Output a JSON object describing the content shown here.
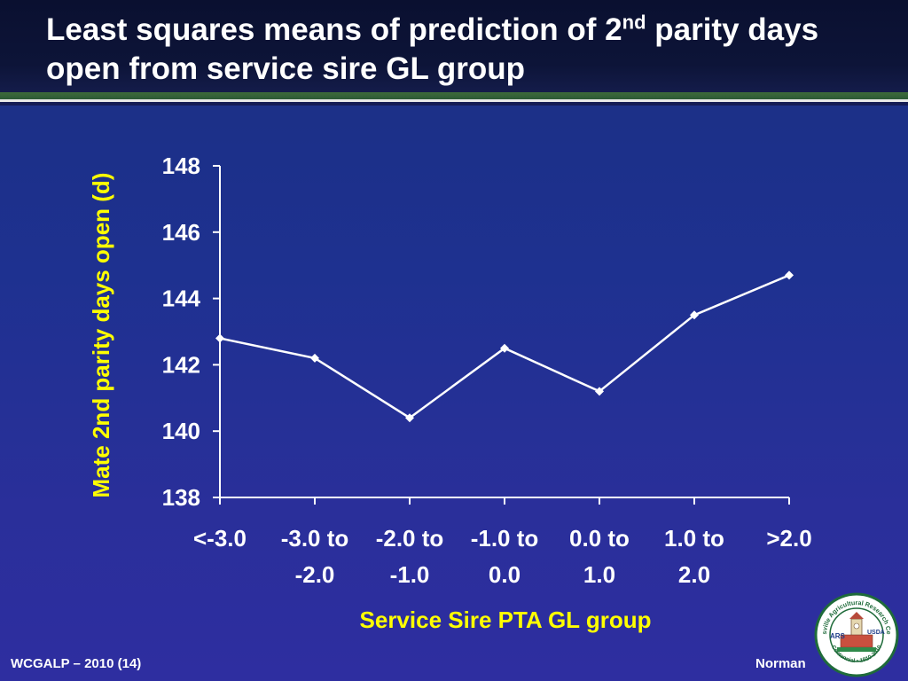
{
  "slide": {
    "title_part1": "Least squares means of prediction of 2",
    "title_sup": "nd",
    "title_part2": " parity days open from service sire GL group",
    "footer_left": "WCGALP – 2010 (14)",
    "footer_right": "Norman"
  },
  "logo": {
    "ring_text": "Beltsville Agricultural Research Center",
    "ring_text_bottom": "Centennial • 1910-2010",
    "usda": "USDA",
    "ars": "ARS"
  },
  "chart_data": {
    "type": "line",
    "categories": [
      [
        "<-3.0"
      ],
      [
        "-3.0 to",
        "-2.0"
      ],
      [
        "-2.0 to",
        "-1.0"
      ],
      [
        "-1.0 to",
        "0.0"
      ],
      [
        "0.0 to",
        "1.0"
      ],
      [
        "1.0 to",
        "2.0"
      ],
      [
        ">2.0"
      ]
    ],
    "values": [
      142.8,
      142.2,
      140.4,
      142.5,
      141.2,
      143.5,
      144.7
    ],
    "xlabel": "Service Sire PTA GL group",
    "ylabel": "Mate 2nd parity days open (d)",
    "ylim": [
      138,
      148
    ],
    "yticks": [
      138,
      140,
      142,
      144,
      146,
      148
    ],
    "grid": false,
    "legend": "none",
    "colors": {
      "line": "#ffffff",
      "axis": "#ffffff",
      "label": "#ffff00",
      "tick_text": "#ffffff"
    }
  }
}
